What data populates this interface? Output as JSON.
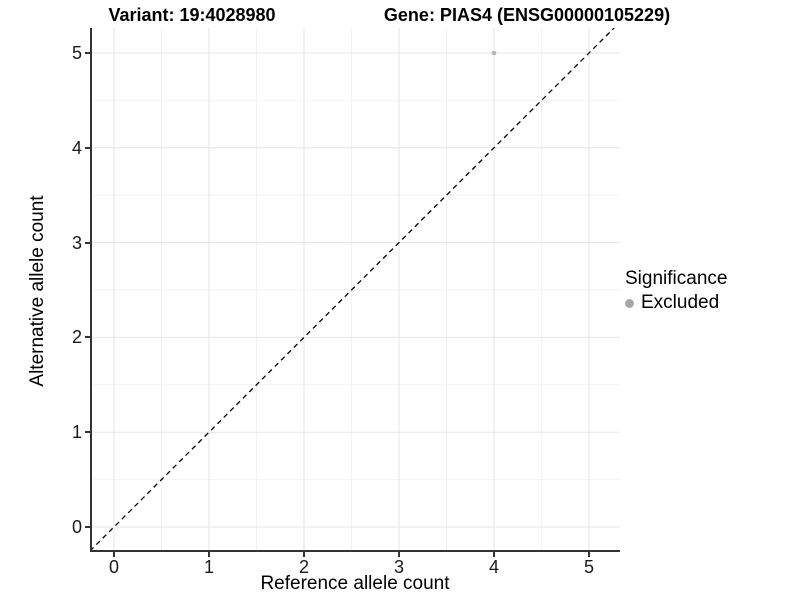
{
  "titles": {
    "variant": "Variant: 19:4028980",
    "gene": "Gene: PIAS4 (ENSG00000105229)"
  },
  "axes": {
    "x": {
      "label": "Reference allele count",
      "tick_labels": [
        "0",
        "1",
        "2",
        "3",
        "4",
        "5"
      ]
    },
    "y": {
      "label": "Alternative allele count",
      "tick_labels": [
        "0",
        "1",
        "2",
        "3",
        "4",
        "5"
      ]
    }
  },
  "legend": {
    "title": "Significance",
    "items": [
      {
        "label": "Excluded",
        "color": "#a8a8a8"
      }
    ]
  },
  "colors": {
    "grid_major": "#e5e5e5",
    "grid_minor": "#f3f3f3",
    "axis_line": "#333333",
    "reference_line": "#000000",
    "point": "#b4b4b4"
  },
  "chart_data": {
    "type": "scatter",
    "title": "Variant: 19:4028980 | Gene: PIAS4 (ENSG00000105229)",
    "xlabel": "Reference allele count",
    "ylabel": "Alternative allele count",
    "xlim": [
      -0.25,
      5.33
    ],
    "ylim": [
      -0.26,
      5.26
    ],
    "x_ticks": [
      0,
      1,
      2,
      3,
      4,
      5
    ],
    "y_ticks": [
      0,
      1,
      2,
      3,
      4,
      5
    ],
    "grid": "major+minor",
    "legend_position": "right",
    "series": [
      {
        "name": "Excluded",
        "color": "#b4b4b4",
        "points": [
          {
            "x": 4,
            "y": 5
          }
        ]
      }
    ],
    "reference_line": {
      "kind": "identity y=x",
      "style": "dashed",
      "color": "#000000"
    }
  }
}
